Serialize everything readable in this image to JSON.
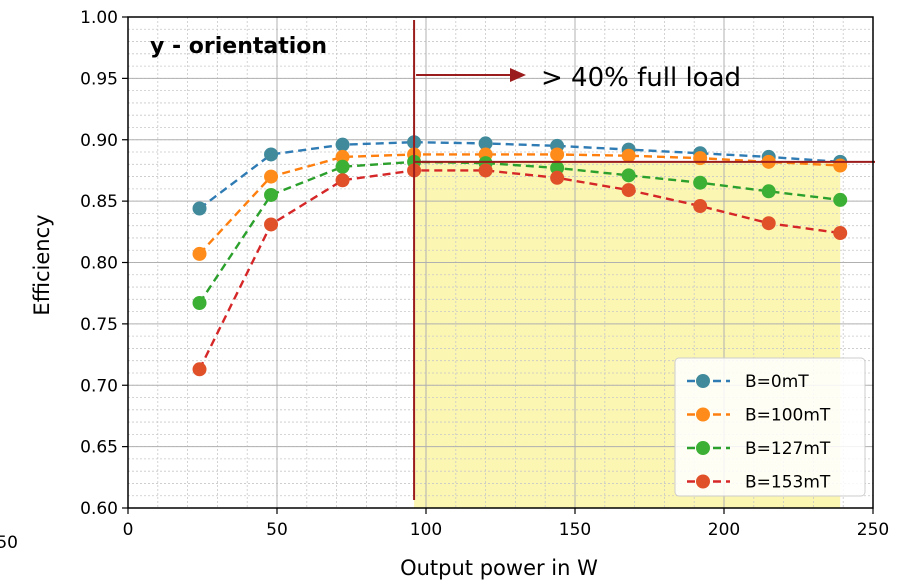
{
  "chart_data": {
    "type": "line",
    "xlabel": "Output power in W",
    "ylabel": "Efficiency",
    "xlim": [
      0,
      250
    ],
    "ylim": [
      0.6,
      1.0
    ],
    "x_ticks": [
      0,
      50,
      100,
      150,
      200,
      250
    ],
    "y_ticks": [
      0.6,
      0.65,
      0.7,
      0.75,
      0.8,
      0.85,
      0.9,
      0.95,
      1.0
    ],
    "y_tick_labels": [
      "0.60",
      "0.65",
      "0.70",
      "0.75",
      "0.80",
      "0.85",
      "0.90",
      "0.95",
      "1.00"
    ],
    "grid": true,
    "minor_grid": true,
    "legend_position": "bottom-right",
    "x": [
      24,
      48,
      72,
      96,
      120,
      144,
      168,
      192,
      215,
      239
    ],
    "series": [
      {
        "name": "B=0mT",
        "color": "#2f7bb4",
        "marker_color": "#418a9c",
        "values": [
          0.844,
          0.888,
          0.896,
          0.898,
          0.897,
          0.895,
          0.892,
          0.889,
          0.886,
          0.882
        ]
      },
      {
        "name": "B=100mT",
        "color": "#ff7f0e",
        "marker_color": "#ff8c1a",
        "values": [
          0.807,
          0.87,
          0.886,
          0.888,
          0.888,
          0.888,
          0.887,
          0.885,
          0.882,
          0.879
        ]
      },
      {
        "name": "B=127mT",
        "color": "#2ca02c",
        "marker_color": "#3cb034",
        "values": [
          0.767,
          0.855,
          0.878,
          0.882,
          0.881,
          0.877,
          0.871,
          0.865,
          0.858,
          0.851
        ]
      },
      {
        "name": "B=153mT",
        "color": "#d62728",
        "marker_color": "#e0512a",
        "values": [
          0.713,
          0.831,
          0.867,
          0.875,
          0.875,
          0.869,
          0.859,
          0.846,
          0.832,
          0.824
        ]
      }
    ],
    "annotations": {
      "title_text": "y - orientation",
      "title_color": "#b71c1c",
      "threshold_text": "> 40% full load",
      "threshold_color": "#9b1c1c",
      "vertical_line_x": 96,
      "horizontal_line_y": 0.882,
      "highlight_region": {
        "x": [
          96,
          239
        ],
        "y": [
          0.6,
          0.882
        ],
        "color": "#fbf5a6"
      }
    },
    "clipped_left_label": "50"
  }
}
